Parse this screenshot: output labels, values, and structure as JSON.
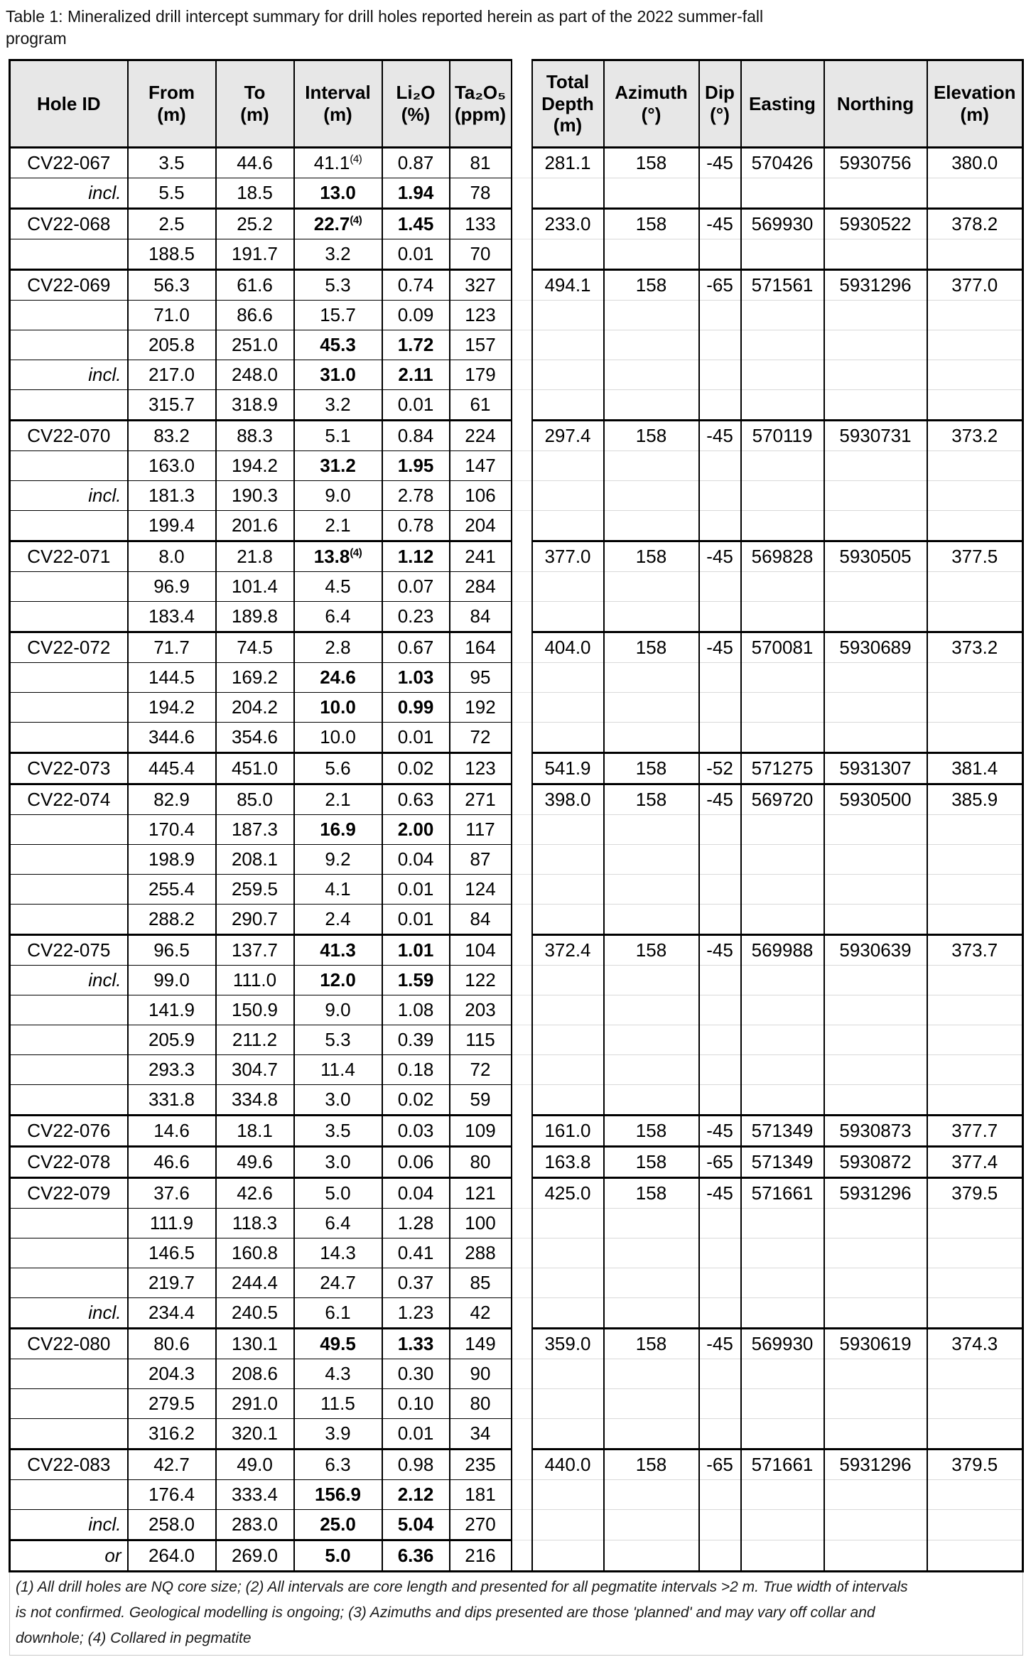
{
  "title": {
    "line1": "Table 1: Mineralized drill intercept summary for drill holes reported herein as part of the 2022 summer-fall",
    "line2": "program"
  },
  "table": {
    "headers": [
      "Hole ID",
      "From\n(m)",
      "To\n(m)",
      "Interval\n(m)",
      "Li₂O\n(%)",
      "Ta₂O₅\n(ppm)",
      "",
      "Total\nDepth\n(m)",
      "Azimuth\n(°)",
      "Dip\n(°)",
      "Easting",
      "Northing",
      "Elevation\n(m)"
    ],
    "groups": [
      {
        "collar": {
          "total_depth": "281.1",
          "azimuth": "158",
          "dip": "-45",
          "easting": "570426",
          "northing": "5930756",
          "elevation": "380.0"
        },
        "rows": [
          {
            "label": "CV22-067",
            "from": "3.5",
            "to": "44.6",
            "interval": "41.1",
            "interval_sup": "(4)",
            "li2o": "0.87",
            "ta2o5": "81"
          },
          {
            "label": "incl.",
            "label_italic": true,
            "from": "5.5",
            "to": "18.5",
            "interval": "13.0",
            "li2o": "1.94",
            "ta2o5": "78",
            "bold": true
          }
        ]
      },
      {
        "collar": {
          "total_depth": "233.0",
          "azimuth": "158",
          "dip": "-45",
          "easting": "569930",
          "northing": "5930522",
          "elevation": "378.2"
        },
        "rows": [
          {
            "label": "CV22-068",
            "from": "2.5",
            "to": "25.2",
            "interval": "22.7",
            "interval_sup": "(4)",
            "li2o": "1.45",
            "ta2o5": "133",
            "bold": true
          },
          {
            "label": "",
            "from": "188.5",
            "to": "191.7",
            "interval": "3.2",
            "li2o": "0.01",
            "ta2o5": "70"
          }
        ]
      },
      {
        "collar": {
          "total_depth": "494.1",
          "azimuth": "158",
          "dip": "-65",
          "easting": "571561",
          "northing": "5931296",
          "elevation": "377.0"
        },
        "rows": [
          {
            "label": "CV22-069",
            "from": "56.3",
            "to": "61.6",
            "interval": "5.3",
            "li2o": "0.74",
            "ta2o5": "327"
          },
          {
            "label": "",
            "from": "71.0",
            "to": "86.6",
            "interval": "15.7",
            "li2o": "0.09",
            "ta2o5": "123"
          },
          {
            "label": "",
            "from": "205.8",
            "to": "251.0",
            "interval": "45.3",
            "li2o": "1.72",
            "ta2o5": "157",
            "bold": true
          },
          {
            "label": "incl.",
            "label_italic": true,
            "from": "217.0",
            "to": "248.0",
            "interval": "31.0",
            "li2o": "2.11",
            "ta2o5": "179",
            "bold": true
          },
          {
            "label": "",
            "from": "315.7",
            "to": "318.9",
            "interval": "3.2",
            "li2o": "0.01",
            "ta2o5": "61"
          }
        ]
      },
      {
        "collar": {
          "total_depth": "297.4",
          "azimuth": "158",
          "dip": "-45",
          "easting": "570119",
          "northing": "5930731",
          "elevation": "373.2"
        },
        "rows": [
          {
            "label": "CV22-070",
            "from": "83.2",
            "to": "88.3",
            "interval": "5.1",
            "li2o": "0.84",
            "ta2o5": "224"
          },
          {
            "label": "",
            "from": "163.0",
            "to": "194.2",
            "interval": "31.2",
            "li2o": "1.95",
            "ta2o5": "147",
            "bold": true
          },
          {
            "label": "incl.",
            "label_italic": true,
            "from": "181.3",
            "to": "190.3",
            "interval": "9.0",
            "li2o": "2.78",
            "ta2o5": "106"
          },
          {
            "label": "",
            "from": "199.4",
            "to": "201.6",
            "interval": "2.1",
            "li2o": "0.78",
            "ta2o5": "204"
          }
        ]
      },
      {
        "collar": {
          "total_depth": "377.0",
          "azimuth": "158",
          "dip": "-45",
          "easting": "569828",
          "northing": "5930505",
          "elevation": "377.5"
        },
        "rows": [
          {
            "label": "CV22-071",
            "from": "8.0",
            "to": "21.8",
            "interval": "13.8",
            "interval_sup": "(4)",
            "li2o": "1.12",
            "ta2o5": "241",
            "bold": true
          },
          {
            "label": "",
            "from": "96.9",
            "to": "101.4",
            "interval": "4.5",
            "li2o": "0.07",
            "ta2o5": "284"
          },
          {
            "label": "",
            "from": "183.4",
            "to": "189.8",
            "interval": "6.4",
            "li2o": "0.23",
            "ta2o5": "84"
          }
        ]
      },
      {
        "collar": {
          "total_depth": "404.0",
          "azimuth": "158",
          "dip": "-45",
          "easting": "570081",
          "northing": "5930689",
          "elevation": "373.2"
        },
        "rows": [
          {
            "label": "CV22-072",
            "from": "71.7",
            "to": "74.5",
            "interval": "2.8",
            "li2o": "0.67",
            "ta2o5": "164"
          },
          {
            "label": "",
            "from": "144.5",
            "to": "169.2",
            "interval": "24.6",
            "li2o": "1.03",
            "ta2o5": "95",
            "bold": true
          },
          {
            "label": "",
            "from": "194.2",
            "to": "204.2",
            "interval": "10.0",
            "li2o": "0.99",
            "ta2o5": "192",
            "bold": true
          },
          {
            "label": "",
            "from": "344.6",
            "to": "354.6",
            "interval": "10.0",
            "li2o": "0.01",
            "ta2o5": "72"
          }
        ]
      },
      {
        "collar": {
          "total_depth": "541.9",
          "azimuth": "158",
          "dip": "-52",
          "easting": "571275",
          "northing": "5931307",
          "elevation": "381.4"
        },
        "rows": [
          {
            "label": "CV22-073",
            "from": "445.4",
            "to": "451.0",
            "interval": "5.6",
            "li2o": "0.02",
            "ta2o5": "123"
          }
        ]
      },
      {
        "collar": {
          "total_depth": "398.0",
          "azimuth": "158",
          "dip": "-45",
          "easting": "569720",
          "northing": "5930500",
          "elevation": "385.9"
        },
        "rows": [
          {
            "label": "CV22-074",
            "from": "82.9",
            "to": "85.0",
            "interval": "2.1",
            "li2o": "0.63",
            "ta2o5": "271"
          },
          {
            "label": "",
            "from": "170.4",
            "to": "187.3",
            "interval": "16.9",
            "li2o": "2.00",
            "ta2o5": "117",
            "bold": true
          },
          {
            "label": "",
            "from": "198.9",
            "to": "208.1",
            "interval": "9.2",
            "li2o": "0.04",
            "ta2o5": "87"
          },
          {
            "label": "",
            "from": "255.4",
            "to": "259.5",
            "interval": "4.1",
            "li2o": "0.01",
            "ta2o5": "124"
          },
          {
            "label": "",
            "from": "288.2",
            "to": "290.7",
            "interval": "2.4",
            "li2o": "0.01",
            "ta2o5": "84"
          }
        ]
      },
      {
        "collar": {
          "total_depth": "372.4",
          "azimuth": "158",
          "dip": "-45",
          "easting": "569988",
          "northing": "5930639",
          "elevation": "373.7"
        },
        "rows": [
          {
            "label": "CV22-075",
            "from": "96.5",
            "to": "137.7",
            "interval": "41.3",
            "li2o": "1.01",
            "ta2o5": "104",
            "bold": true
          },
          {
            "label": "incl.",
            "label_italic": true,
            "from": "99.0",
            "to": "111.0",
            "interval": "12.0",
            "li2o": "1.59",
            "ta2o5": "122",
            "bold": true
          },
          {
            "label": "",
            "from": "141.9",
            "to": "150.9",
            "interval": "9.0",
            "li2o": "1.08",
            "ta2o5": "203"
          },
          {
            "label": "",
            "from": "205.9",
            "to": "211.2",
            "interval": "5.3",
            "li2o": "0.39",
            "ta2o5": "115"
          },
          {
            "label": "",
            "from": "293.3",
            "to": "304.7",
            "interval": "11.4",
            "li2o": "0.18",
            "ta2o5": "72"
          },
          {
            "label": "",
            "from": "331.8",
            "to": "334.8",
            "interval": "3.0",
            "li2o": "0.02",
            "ta2o5": "59"
          }
        ]
      },
      {
        "collar": {
          "total_depth": "161.0",
          "azimuth": "158",
          "dip": "-45",
          "easting": "571349",
          "northing": "5930873",
          "elevation": "377.7"
        },
        "rows": [
          {
            "label": "CV22-076",
            "from": "14.6",
            "to": "18.1",
            "interval": "3.5",
            "li2o": "0.03",
            "ta2o5": "109"
          }
        ]
      },
      {
        "collar": {
          "total_depth": "163.8",
          "azimuth": "158",
          "dip": "-65",
          "easting": "571349",
          "northing": "5930872",
          "elevation": "377.4"
        },
        "rows": [
          {
            "label": "CV22-078",
            "from": "46.6",
            "to": "49.6",
            "interval": "3.0",
            "li2o": "0.06",
            "ta2o5": "80"
          }
        ]
      },
      {
        "collar": {
          "total_depth": "425.0",
          "azimuth": "158",
          "dip": "-45",
          "easting": "571661",
          "northing": "5931296",
          "elevation": "379.5"
        },
        "rows": [
          {
            "label": "CV22-079",
            "from": "37.6",
            "to": "42.6",
            "interval": "5.0",
            "li2o": "0.04",
            "ta2o5": "121"
          },
          {
            "label": "",
            "from": "111.9",
            "to": "118.3",
            "interval": "6.4",
            "li2o": "1.28",
            "ta2o5": "100"
          },
          {
            "label": "",
            "from": "146.5",
            "to": "160.8",
            "interval": "14.3",
            "li2o": "0.41",
            "ta2o5": "288"
          },
          {
            "label": "",
            "from": "219.7",
            "to": "244.4",
            "interval": "24.7",
            "li2o": "0.37",
            "ta2o5": "85"
          },
          {
            "label": "incl.",
            "label_italic": true,
            "from": "234.4",
            "to": "240.5",
            "interval": "6.1",
            "li2o": "1.23",
            "ta2o5": "42"
          }
        ]
      },
      {
        "collar": {
          "total_depth": "359.0",
          "azimuth": "158",
          "dip": "-45",
          "easting": "569930",
          "northing": "5930619",
          "elevation": "374.3"
        },
        "rows": [
          {
            "label": "CV22-080",
            "from": "80.6",
            "to": "130.1",
            "interval": "49.5",
            "li2o": "1.33",
            "ta2o5": "149",
            "bold": true
          },
          {
            "label": "",
            "from": "204.3",
            "to": "208.6",
            "interval": "4.3",
            "li2o": "0.30",
            "ta2o5": "90"
          },
          {
            "label": "",
            "from": "279.5",
            "to": "291.0",
            "interval": "11.5",
            "li2o": "0.10",
            "ta2o5": "80"
          },
          {
            "label": "",
            "from": "316.2",
            "to": "320.1",
            "interval": "3.9",
            "li2o": "0.01",
            "ta2o5": "34"
          }
        ]
      },
      {
        "collar": {
          "total_depth": "440.0",
          "azimuth": "158",
          "dip": "-65",
          "easting": "571661",
          "northing": "5931296",
          "elevation": "379.5"
        },
        "rows": [
          {
            "label": "CV22-083",
            "from": "42.7",
            "to": "49.0",
            "interval": "6.3",
            "li2o": "0.98",
            "ta2o5": "235"
          },
          {
            "label": "",
            "from": "176.4",
            "to": "333.4",
            "interval": "156.9",
            "li2o": "2.12",
            "ta2o5": "181",
            "bold": true
          },
          {
            "label": "incl.",
            "label_italic": true,
            "from": "258.0",
            "to": "283.0",
            "interval": "25.0",
            "li2o": "5.04",
            "ta2o5": "270",
            "bold": true
          },
          {
            "label": "or",
            "label_italic": true,
            "from": "264.0",
            "to": "269.0",
            "interval": "5.0",
            "li2o": "6.36",
            "ta2o5": "216",
            "bold": true,
            "thick_top": true
          }
        ]
      }
    ]
  },
  "footnotes": {
    "line1": "(1) All drill holes are NQ core size; (2) All intervals are core length and presented for all pegmatite intervals >2 m. True width of intervals",
    "line2": "is not confirmed. Geological modelling is ongoing; (3) Azimuths and dips presented are those 'planned' and may vary off collar and",
    "line3": "downhole; (4) Collared in pegmatite"
  },
  "colors": {
    "header_bg": "#E7E7E7",
    "border_dark": "#000000",
    "border_light": "#D9D9D9",
    "footnote_border": "#C9C9C9"
  }
}
